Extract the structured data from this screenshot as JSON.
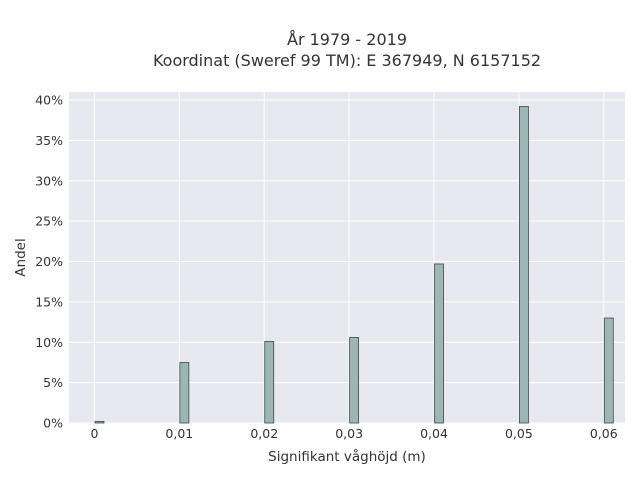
{
  "chart_data": {
    "type": "bar",
    "title_lines": [
      "År 1979 - 2019",
      "Koordinat (Sweref 99 TM): E 367949, N 6157152"
    ],
    "xlabel": "Signifikant våghöjd (m)",
    "ylabel": "Andel",
    "x": [
      0,
      0.01,
      0.02,
      0.03,
      0.04,
      0.05,
      0.06
    ],
    "values": [
      0.2,
      7.5,
      10.1,
      10.6,
      19.7,
      39.2,
      13.0
    ],
    "xlim": [
      -0.003,
      0.0625
    ],
    "ylim": [
      0,
      41
    ],
    "x_ticks": [
      0,
      0.01,
      0.02,
      0.03,
      0.04,
      0.05,
      0.06
    ],
    "x_tick_labels": [
      "0",
      "0,01",
      "0,02",
      "0,03",
      "0,04",
      "0,05",
      "0,06"
    ],
    "y_ticks": [
      0,
      5,
      10,
      15,
      20,
      25,
      30,
      35,
      40
    ],
    "y_tick_labels": [
      "0%",
      "5%",
      "10%",
      "15%",
      "20%",
      "25%",
      "30%",
      "35%",
      "40%"
    ],
    "grid": true,
    "bar_color": "#9db5b5",
    "bar_edge_color": "#3a4a4a",
    "plot_bg": "#e8e9f0",
    "grid_color": "#ffffff"
  }
}
